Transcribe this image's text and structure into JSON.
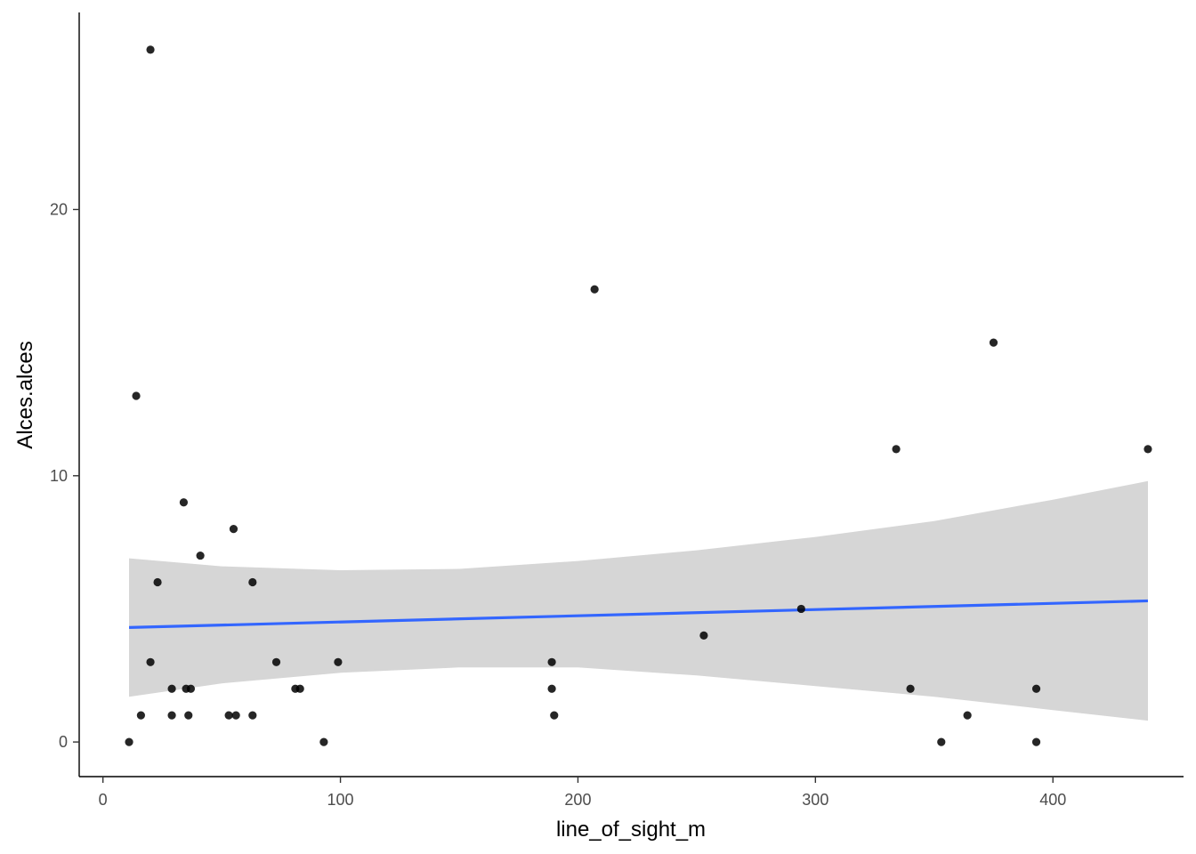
{
  "chart_data": {
    "type": "scatter",
    "xlabel": "line_of_sight_m",
    "ylabel": "Alces.alces",
    "xlim": [
      -10,
      455
    ],
    "ylim": [
      -1.3,
      27.4
    ],
    "x_ticks": [
      0,
      100,
      200,
      300,
      400
    ],
    "y_ticks": [
      0,
      10,
      20
    ],
    "grid": false,
    "points": [
      {
        "x": 11,
        "y": 0
      },
      {
        "x": 14,
        "y": 13
      },
      {
        "x": 16,
        "y": 1
      },
      {
        "x": 20,
        "y": 26
      },
      {
        "x": 20,
        "y": 3
      },
      {
        "x": 23,
        "y": 6
      },
      {
        "x": 29,
        "y": 2
      },
      {
        "x": 29,
        "y": 1
      },
      {
        "x": 34,
        "y": 9
      },
      {
        "x": 35,
        "y": 2
      },
      {
        "x": 36,
        "y": 1
      },
      {
        "x": 37,
        "y": 2
      },
      {
        "x": 41,
        "y": 7
      },
      {
        "x": 53,
        "y": 1
      },
      {
        "x": 55,
        "y": 8
      },
      {
        "x": 56,
        "y": 1
      },
      {
        "x": 63,
        "y": 6
      },
      {
        "x": 63,
        "y": 1
      },
      {
        "x": 73,
        "y": 3
      },
      {
        "x": 81,
        "y": 2
      },
      {
        "x": 83,
        "y": 2
      },
      {
        "x": 93,
        "y": 0
      },
      {
        "x": 99,
        "y": 3
      },
      {
        "x": 189,
        "y": 3
      },
      {
        "x": 189,
        "y": 2
      },
      {
        "x": 190,
        "y": 1
      },
      {
        "x": 207,
        "y": 17
      },
      {
        "x": 253,
        "y": 4
      },
      {
        "x": 294,
        "y": 5
      },
      {
        "x": 334,
        "y": 11
      },
      {
        "x": 340,
        "y": 2
      },
      {
        "x": 353,
        "y": 0
      },
      {
        "x": 364,
        "y": 1
      },
      {
        "x": 375,
        "y": 15
      },
      {
        "x": 393,
        "y": 2
      },
      {
        "x": 393,
        "y": 0
      },
      {
        "x": 440,
        "y": 11
      }
    ],
    "trend_line": {
      "color": "#3366ff",
      "x": [
        11,
        440
      ],
      "y": [
        4.3,
        5.3
      ]
    },
    "confidence_band": {
      "color": "#d6d6d6",
      "x": [
        11,
        50,
        100,
        150,
        200,
        250,
        300,
        350,
        400,
        440
      ],
      "upper": [
        6.9,
        6.6,
        6.45,
        6.5,
        6.8,
        7.2,
        7.7,
        8.3,
        9.1,
        9.8
      ],
      "lower": [
        1.7,
        2.2,
        2.6,
        2.8,
        2.8,
        2.5,
        2.1,
        1.7,
        1.2,
        0.8
      ]
    },
    "point_color": "#000000"
  }
}
